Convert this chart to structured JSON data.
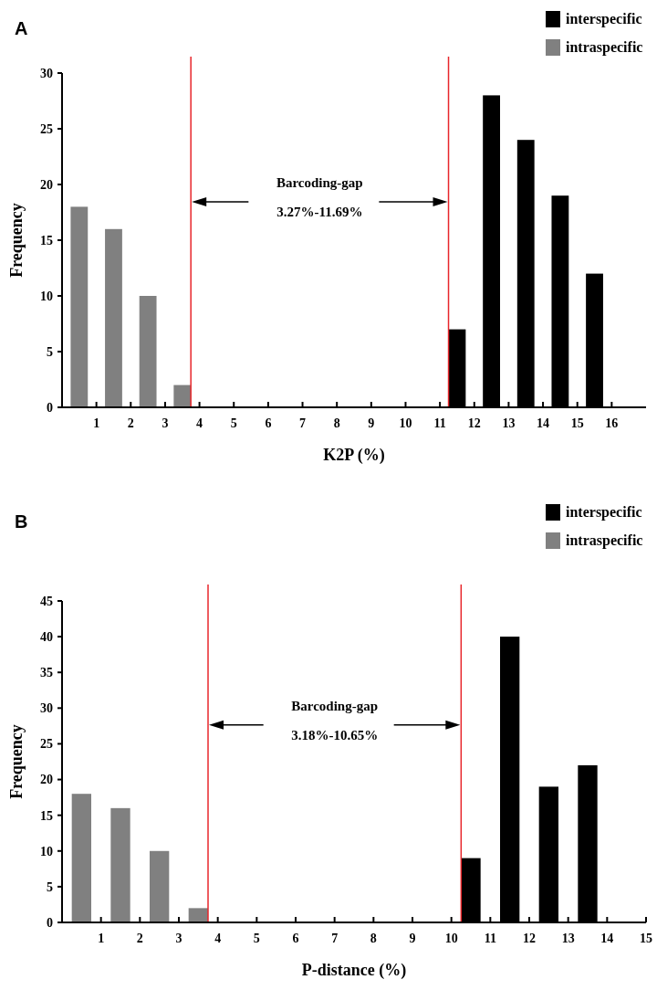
{
  "chart_data": [
    {
      "type": "bar",
      "title": "A",
      "xlabel": "K2P (%)",
      "ylabel": "Frequency",
      "xlim": [
        0,
        17
      ],
      "xticks": [
        1,
        2,
        3,
        4,
        5,
        6,
        7,
        8,
        9,
        10,
        11,
        12,
        13,
        14,
        15,
        16
      ],
      "ylim": [
        0,
        30
      ],
      "yticks": [
        0,
        5,
        10,
        15,
        20,
        25,
        30
      ],
      "legend": "top right",
      "series": [
        {
          "name": "interspecific",
          "color": "#000000",
          "x": [
            11.5,
            12.5,
            13.5,
            14.5,
            15.5
          ],
          "values": [
            7,
            28,
            24,
            19,
            12
          ]
        },
        {
          "name": "intraspecific",
          "color": "#808080",
          "x": [
            0.5,
            1.5,
            2.5,
            3.5
          ],
          "values": [
            18,
            16,
            10,
            2
          ]
        }
      ],
      "ref_lines": [
        {
          "axis": "x",
          "value": 3.75,
          "color": "#e8262b"
        },
        {
          "axis": "x",
          "value": 11.25,
          "color": "#e8262b"
        }
      ],
      "annotations": [
        "Barcoding-gap",
        "3.27%-11.69%"
      ]
    },
    {
      "type": "bar",
      "title": "B",
      "xlabel": "P-distance (%)",
      "ylabel": "Frequency",
      "xlim": [
        0,
        15
      ],
      "xticks": [
        1,
        2,
        3,
        4,
        5,
        6,
        7,
        8,
        9,
        10,
        11,
        12,
        13,
        14,
        15
      ],
      "ylim": [
        0,
        45
      ],
      "yticks": [
        0,
        5,
        10,
        15,
        20,
        25,
        30,
        35,
        40,
        45
      ],
      "legend": "top right",
      "series": [
        {
          "name": "interspecific",
          "color": "#000000",
          "x": [
            10.5,
            11.5,
            12.5,
            13.5
          ],
          "values": [
            9,
            40,
            19,
            22
          ]
        },
        {
          "name": "intraspecific",
          "color": "#808080",
          "x": [
            0.5,
            1.5,
            2.5,
            3.5
          ],
          "values": [
            18,
            16,
            10,
            2
          ]
        }
      ],
      "ref_lines": [
        {
          "axis": "x",
          "value": 3.75,
          "color": "#e8262b"
        },
        {
          "axis": "x",
          "value": 10.25,
          "color": "#e8262b"
        }
      ],
      "annotations": [
        "Barcoding-gap",
        "3.18%-10.65%"
      ]
    }
  ]
}
